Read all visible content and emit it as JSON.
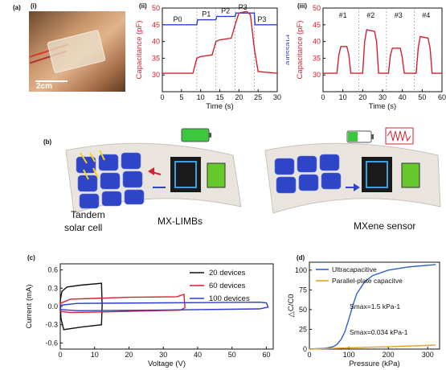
{
  "panel_labels": {
    "a": "(a)",
    "i": "(i)",
    "ii": "(ii)",
    "iii": "(iii)",
    "b": "(b)",
    "c": "(c)",
    "d": "(d)"
  },
  "photo": {
    "scale_label": "2cm"
  },
  "schematic": {
    "left_label_1": "Tandem",
    "left_label_2": "solar cell",
    "mid_label": "MX-LIMBs",
    "right_label": "MXene sensor"
  },
  "chart_data": [
    {
      "id": "ii",
      "type": "line",
      "xlabel": "Time (s)",
      "ylabel": "Capacitance (pF)",
      "ylabel_right": "Pressure",
      "xlim": [
        0,
        30
      ],
      "ylim": [
        25,
        50
      ],
      "xticks": [
        0,
        5,
        10,
        15,
        20,
        25,
        30
      ],
      "yticks": [
        30,
        35,
        40,
        45,
        50
      ],
      "pressure_labels": [
        "P0",
        "P1",
        "P2",
        "P3",
        "P3"
      ],
      "pressure_label_x": [
        4,
        11.5,
        16.5,
        21,
        26
      ],
      "pressure_dividers": [
        9,
        14,
        19,
        24
      ],
      "series": [
        {
          "color": "#2f3fc8",
          "x": [
            0,
            9,
            9.2,
            14,
            14.2,
            19,
            19.2,
            24,
            24.2,
            30
          ],
          "y": [
            45,
            45,
            46.5,
            46.5,
            47.5,
            47.5,
            48.5,
            48.5,
            45,
            45
          ]
        },
        {
          "color": "#d42030",
          "x": [
            0,
            8,
            9,
            10,
            13,
            14,
            15,
            18,
            19,
            20,
            22,
            23,
            24,
            25,
            30
          ],
          "y": [
            30.5,
            30.5,
            35,
            35.5,
            36,
            40,
            40.5,
            41,
            45,
            48.5,
            49,
            48,
            38,
            31,
            30.5
          ]
        }
      ]
    },
    {
      "id": "iii",
      "type": "line",
      "xlabel": "Time (s)",
      "ylabel": "Capacitance (pF)",
      "xlim": [
        0,
        60
      ],
      "ylim": [
        25,
        50
      ],
      "xticks": [
        0,
        10,
        20,
        30,
        40,
        50,
        60
      ],
      "yticks": [
        30,
        35,
        40,
        45,
        50
      ],
      "event_labels": [
        "#1",
        "#2",
        "#3",
        "#4"
      ],
      "event_label_x": [
        10,
        24,
        38,
        52
      ],
      "dividers": [
        18,
        32,
        46
      ],
      "series": [
        {
          "color": "#d42030",
          "x": [
            0,
            7,
            8,
            9,
            12,
            13,
            14,
            20,
            21,
            22,
            26,
            27,
            28,
            33,
            34,
            35,
            39,
            40,
            41,
            47,
            48,
            49,
            53,
            54,
            55,
            60
          ],
          "y": [
            30.5,
            30.5,
            36,
            38.5,
            38.5,
            36,
            30.5,
            30.5,
            40,
            43.5,
            43,
            40,
            30.5,
            30.5,
            36,
            38,
            38,
            35,
            30.5,
            30.5,
            38,
            41.5,
            41,
            38,
            30.5,
            30.5
          ]
        }
      ]
    },
    {
      "id": "c",
      "type": "line",
      "xlabel": "Voltage (V)",
      "ylabel": "Current (mA)",
      "xlim": [
        0,
        62
      ],
      "ylim": [
        -0.7,
        0.7
      ],
      "xticks": [
        0,
        10,
        20,
        30,
        40,
        50,
        60
      ],
      "yticks": [
        -0.6,
        -0.3,
        0.0,
        0.3,
        0.6
      ],
      "legend_position": "top-right",
      "series": [
        {
          "name": "20 devices",
          "color": "#111111",
          "x": [
            0,
            0.5,
            2,
            6,
            12,
            12.2,
            12,
            6,
            1,
            0.2,
            0
          ],
          "y": [
            0.1,
            0.25,
            0.32,
            0.35,
            0.38,
            0.02,
            -0.3,
            -0.34,
            -0.38,
            -0.2,
            0.1
          ]
        },
        {
          "name": "60 devices",
          "color": "#d42030",
          "x": [
            0,
            3,
            20,
            34,
            36,
            36.3,
            35,
            20,
            3,
            0,
            0
          ],
          "y": [
            0.05,
            0.12,
            0.15,
            0.16,
            0.2,
            -0.02,
            -0.06,
            -0.08,
            -0.1,
            -0.08,
            0.05
          ]
        },
        {
          "name": "100 devices",
          "color": "#2f3fc8",
          "x": [
            0,
            5,
            30,
            58,
            60,
            60.5,
            58,
            30,
            5,
            0,
            0
          ],
          "y": [
            0.02,
            0.05,
            0.06,
            0.07,
            0.06,
            -0.01,
            -0.04,
            -0.06,
            -0.07,
            -0.05,
            0.02
          ]
        }
      ]
    },
    {
      "id": "d",
      "type": "line",
      "xlabel": "Pressure (kPa)",
      "ylabel": "△C/C0",
      "xlim": [
        0,
        330
      ],
      "ylim": [
        0,
        110
      ],
      "xticks": [
        0,
        100,
        200,
        300
      ],
      "yticks": [
        0,
        25,
        50,
        75,
        100
      ],
      "legend_position": "top-left",
      "annotations": [
        "Smax=1.5 kPa-1",
        "Smax=0.034 kPa-1"
      ],
      "series": [
        {
          "name": "Ultracapacitive",
          "color": "#2f5fd0",
          "x": [
            0,
            40,
            60,
            70,
            80,
            90,
            100,
            110,
            120,
            140,
            160,
            200,
            250,
            320
          ],
          "y": [
            0,
            1,
            3,
            6,
            12,
            22,
            38,
            55,
            70,
            85,
            93,
            100,
            104,
            107
          ]
        },
        {
          "name": "Parallel-plate capacitve",
          "color": "#e8a020",
          "x": [
            0,
            100,
            200,
            320
          ],
          "y": [
            0,
            1.5,
            3,
            5
          ]
        }
      ]
    }
  ]
}
